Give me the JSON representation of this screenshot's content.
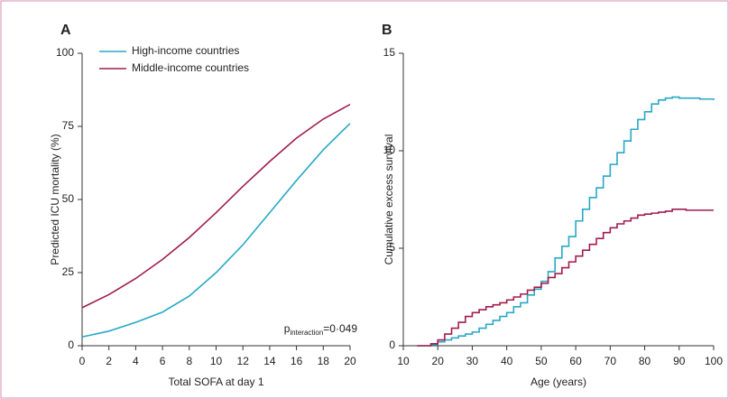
{
  "chart_data": [
    {
      "type": "line",
      "panel_label": "A",
      "x_label": "Total SOFA at day 1",
      "y_label": "Predicted ICU mortality (%)",
      "x": [
        0,
        2,
        4,
        6,
        8,
        10,
        12,
        14,
        16,
        18,
        20
      ],
      "series": [
        {
          "name": "High-income countries",
          "color": "#29a8c6",
          "values": [
            3,
            5,
            8,
            11.5,
            17,
            25,
            34.5,
            45.5,
            56.5,
            67,
            76
          ]
        },
        {
          "name": "Middle-income countries",
          "color": "#a11d4f",
          "values": [
            13,
            17.5,
            23,
            29.5,
            37,
            45.5,
            54.5,
            63,
            71,
            77.5,
            82.5
          ]
        }
      ],
      "xlim": [
        0,
        20
      ],
      "xticks": [
        0,
        2,
        4,
        6,
        8,
        10,
        12,
        14,
        16,
        18,
        20
      ],
      "ylim": [
        0,
        100
      ],
      "yticks": [
        0,
        25,
        50,
        75,
        100
      ],
      "legend": "upper left",
      "annotation": {
        "p": "p",
        "sub": "interaction",
        "rest": "=0·049"
      }
    },
    {
      "type": "step",
      "panel_label": "B",
      "x_label": "Age (years)",
      "y_label": "Cumulative excess survival",
      "x": [
        14,
        16,
        18,
        20,
        22,
        24,
        26,
        28,
        30,
        32,
        34,
        36,
        38,
        40,
        42,
        44,
        46,
        48,
        50,
        52,
        54,
        56,
        58,
        60,
        62,
        64,
        66,
        68,
        70,
        72,
        74,
        76,
        78,
        80,
        82,
        84,
        86,
        88,
        90,
        92,
        94,
        96,
        98,
        100
      ],
      "series": [
        {
          "name": null,
          "color": "#29a8c6",
          "values": [
            0,
            0,
            0.05,
            0.2,
            0.3,
            0.4,
            0.5,
            0.6,
            0.7,
            0.9,
            1.1,
            1.3,
            1.5,
            1.7,
            2.0,
            2.2,
            2.6,
            2.9,
            3.3,
            3.8,
            4.5,
            5.1,
            5.6,
            6.4,
            7.0,
            7.6,
            8.1,
            8.7,
            9.3,
            9.9,
            10.5,
            11.1,
            11.6,
            12.0,
            12.4,
            12.6,
            12.7,
            12.75,
            12.7,
            12.7,
            12.7,
            12.65,
            12.65,
            12.6
          ]
        },
        {
          "name": null,
          "color": "#a11d4f",
          "values": [
            0,
            0,
            0.1,
            0.3,
            0.6,
            0.9,
            1.2,
            1.5,
            1.7,
            1.85,
            2.0,
            2.1,
            2.2,
            2.35,
            2.5,
            2.65,
            2.85,
            3.0,
            3.2,
            3.5,
            3.7,
            4.0,
            4.3,
            4.6,
            4.9,
            5.2,
            5.5,
            5.8,
            6.05,
            6.25,
            6.4,
            6.55,
            6.7,
            6.75,
            6.8,
            6.85,
            6.9,
            7.0,
            7.0,
            6.95,
            6.95,
            6.95,
            6.95,
            6.95
          ]
        }
      ],
      "xlim": [
        10,
        100
      ],
      "xticks": [
        10,
        20,
        30,
        40,
        50,
        60,
        70,
        80,
        90,
        100
      ],
      "ylim": [
        0,
        15
      ],
      "yticks": [
        0,
        5,
        10,
        15
      ]
    }
  ]
}
